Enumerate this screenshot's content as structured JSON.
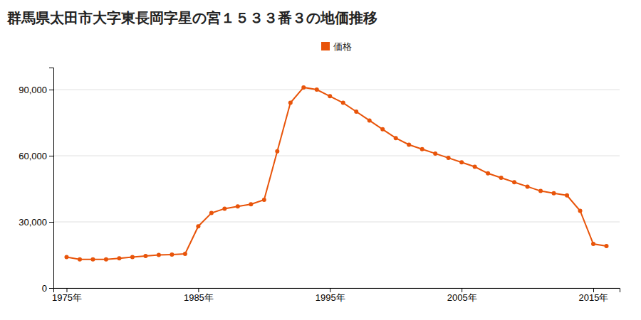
{
  "chart_data": {
    "type": "line",
    "title": "群馬県太田市大字東長岡字星の宮１５３３番３の地価推移",
    "x": [
      1975,
      1976,
      1977,
      1978,
      1979,
      1980,
      1981,
      1982,
      1983,
      1984,
      1985,
      1986,
      1987,
      1988,
      1989,
      1990,
      1991,
      1992,
      1993,
      1994,
      1995,
      1996,
      1997,
      1998,
      1999,
      2000,
      2001,
      2002,
      2003,
      2004,
      2005,
      2006,
      2007,
      2008,
      2009,
      2010,
      2011,
      2012,
      2013,
      2014,
      2015,
      2016
    ],
    "series": [
      {
        "name": "価格",
        "color": "#e8540a",
        "marker": "circle",
        "values": [
          14000,
          13000,
          13000,
          13000,
          13500,
          14000,
          14500,
          15000,
          15200,
          15500,
          28000,
          34000,
          36000,
          37000,
          38000,
          40000,
          62000,
          84000,
          91000,
          90000,
          87000,
          84000,
          80000,
          76000,
          72000,
          68000,
          65000,
          63000,
          61000,
          59000,
          57000,
          55000,
          52000,
          50000,
          48000,
          46000,
          44000,
          43000,
          42000,
          35000,
          20000,
          19000
        ]
      }
    ],
    "xlim": [
      1974,
      2017
    ],
    "xticks": [
      {
        "value": 1975,
        "label": "1975年"
      },
      {
        "value": 1985,
        "label": "1985年"
      },
      {
        "value": 1995,
        "label": "1995年"
      },
      {
        "value": 2005,
        "label": "2005年"
      },
      {
        "value": 2015,
        "label": "2015年"
      }
    ],
    "ylim": [
      0,
      100000
    ],
    "yticks": [
      0,
      {
        "value": 30000,
        "label": "30,000"
      },
      {
        "value": 60000,
        "label": "60,000"
      },
      {
        "value": 90000,
        "label": "90,000"
      }
    ],
    "grid": true,
    "legend": "top"
  }
}
